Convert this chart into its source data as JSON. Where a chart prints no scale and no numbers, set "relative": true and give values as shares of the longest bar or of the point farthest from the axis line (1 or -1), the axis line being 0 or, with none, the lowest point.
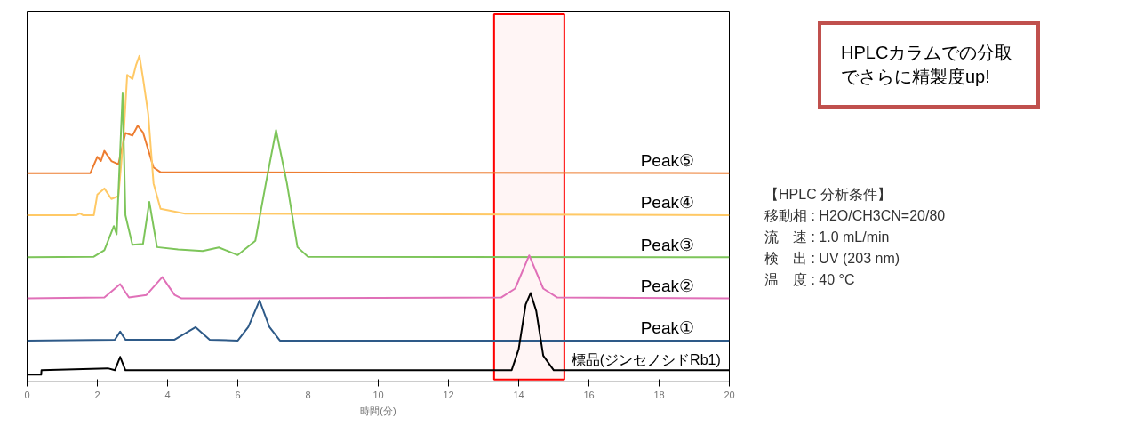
{
  "chart_data": {
    "type": "line",
    "relative": true,
    "xlabel": "時間(分)",
    "xlim": [
      0,
      20
    ],
    "xticks": [
      0,
      2,
      4,
      6,
      8,
      10,
      12,
      14,
      16,
      18,
      20
    ],
    "grid": false,
    "marker": "none",
    "line_style": "solid",
    "series": [
      {
        "name": "Peak⑤",
        "color": "#ed7d31",
        "x": [
          0,
          1.8,
          2.0,
          2.1,
          2.2,
          2.4,
          2.6,
          2.8,
          3.0,
          3.15,
          3.3,
          3.45,
          3.6,
          3.8,
          20
        ],
        "values": [
          0.632,
          0.632,
          0.683,
          0.67,
          0.702,
          0.67,
          0.66,
          0.758,
          0.75,
          0.781,
          0.76,
          0.705,
          0.65,
          0.635,
          0.632
        ]
      },
      {
        "name": "Peak④",
        "color": "#ffc966",
        "x": [
          0,
          1.4,
          1.5,
          1.6,
          1.9,
          2.0,
          2.2,
          2.4,
          2.6,
          2.75,
          2.85,
          3.0,
          3.1,
          3.2,
          3.3,
          3.45,
          3.6,
          3.8,
          4.5,
          20
        ],
        "values": [
          0.5,
          0.5,
          0.506,
          0.5,
          0.5,
          0.565,
          0.584,
          0.551,
          0.56,
          0.75,
          0.94,
          0.927,
          0.97,
          1.0,
          0.93,
          0.817,
          0.6,
          0.52,
          0.505,
          0.5
        ]
      },
      {
        "name": "Peak③",
        "color": "#7dc55a",
        "x": [
          0,
          1.9,
          2.2,
          2.47,
          2.55,
          2.72,
          2.8,
          3.0,
          3.3,
          3.48,
          3.7,
          4.3,
          5.0,
          5.46,
          6.0,
          6.5,
          6.8,
          7.09,
          7.4,
          7.7,
          8.0,
          20
        ],
        "values": [
          0.368,
          0.37,
          0.39,
          0.466,
          0.44,
          0.882,
          0.5,
          0.407,
          0.41,
          0.542,
          0.4,
          0.393,
          0.388,
          0.399,
          0.375,
          0.42,
          0.6,
          0.767,
          0.6,
          0.4,
          0.37,
          0.368
        ]
      },
      {
        "name": "Peak②",
        "color": "#e070b8",
        "x": [
          0,
          2.2,
          2.65,
          2.9,
          3.4,
          3.85,
          4.2,
          4.4,
          13.5,
          13.9,
          14.3,
          14.7,
          15.1,
          20
        ],
        "values": [
          0.239,
          0.242,
          0.284,
          0.242,
          0.25,
          0.306,
          0.25,
          0.239,
          0.242,
          0.27,
          0.374,
          0.27,
          0.242,
          0.239
        ]
      },
      {
        "name": "Peak①",
        "color": "#2e5a88",
        "x": [
          0,
          2.5,
          2.65,
          2.8,
          4.2,
          4.8,
          5.2,
          6.0,
          6.3,
          6.62,
          6.9,
          7.2,
          20
        ],
        "values": [
          0.107,
          0.11,
          0.135,
          0.11,
          0.11,
          0.149,
          0.11,
          0.107,
          0.15,
          0.233,
          0.15,
          0.107,
          0.107
        ]
      },
      {
        "name": "標品(ジンセノシドRb1)",
        "color": "#000000",
        "x": [
          0,
          0.4,
          0.41,
          2.3,
          2.5,
          2.65,
          2.8,
          13.8,
          14.0,
          14.2,
          14.34,
          14.5,
          14.7,
          15.0,
          20
        ],
        "values": [
          0,
          0,
          0.014,
          0.02,
          0.014,
          0.056,
          0.014,
          0.014,
          0.08,
          0.22,
          0.256,
          0.2,
          0.06,
          0.014,
          0.014
        ]
      }
    ],
    "bands": [
      {
        "axis": "x",
        "from": 13.3,
        "to": 15.3,
        "color": "#ff0000"
      }
    ],
    "annotations": [
      "HPLCカラムでの分取でさらに精製度up!",
      "【HPLC 分析条件】",
      "移動相 : H2O/CH3CN=20/80",
      "流　速 : 1.0 mL/min",
      "検　出 : UV (203 nm)",
      "温　度 : 40 °C"
    ]
  }
}
